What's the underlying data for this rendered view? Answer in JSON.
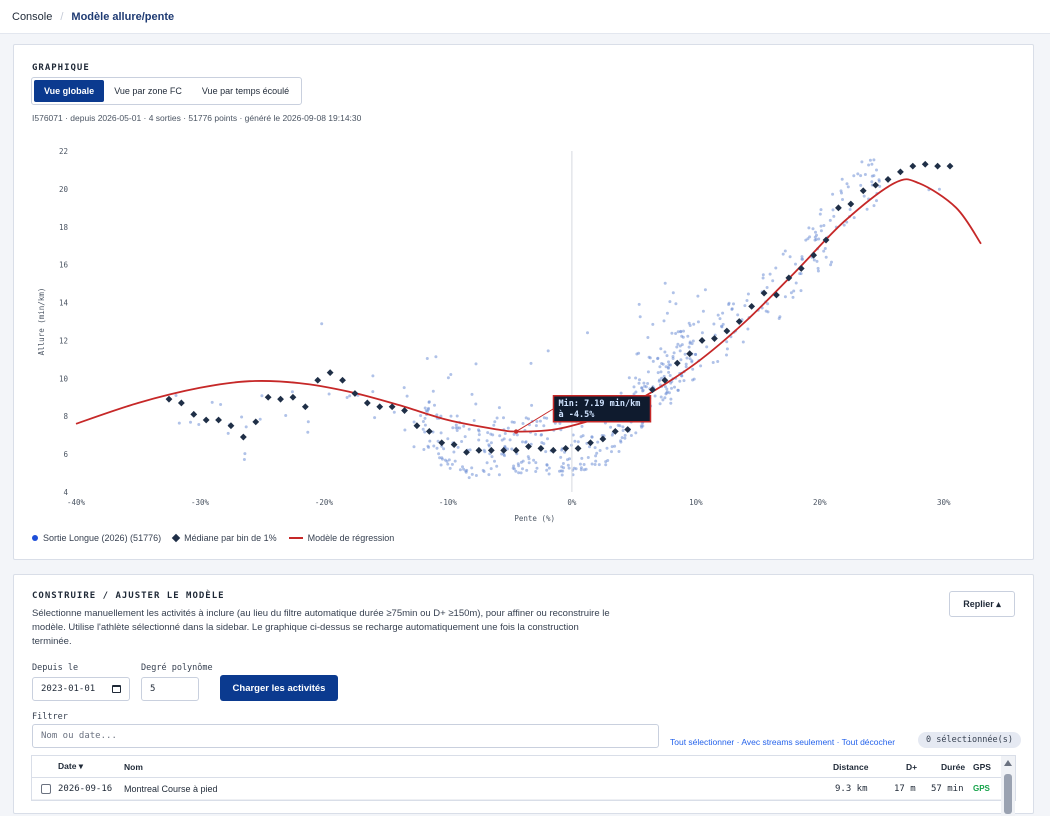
{
  "breadcrumb": {
    "root": "Console",
    "separator": "/",
    "current": "Modèle allure/pente"
  },
  "chart_section": {
    "title": "GRAPHIQUE",
    "tabs": [
      {
        "label": "Vue globale",
        "active": true
      },
      {
        "label": "Vue par zone FC",
        "active": false
      },
      {
        "label": "Vue par temps écoulé",
        "active": false
      }
    ],
    "meta": "I576071 · depuis 2026-05-01 · 4 sorties · 51776 points · généré le 2026-09-08 19:14:30",
    "tooltip": {
      "line1": "Min: 7.19 min/km",
      "line2": "à -4.5%"
    },
    "legend": {
      "points": "Sortie Longue (2026) (51776)",
      "median": "Médiane par bin de 1%",
      "model": "Modèle de régression"
    }
  },
  "chart_data": {
    "type": "scatter",
    "xlabel": "Pente (%)",
    "ylabel": "Allure (min/km)",
    "xlim": [
      -40,
      33
    ],
    "ylim": [
      4,
      22
    ],
    "x_ticks": [
      "-40%",
      "-30%",
      "-20%",
      "-10%",
      "0%",
      "10%",
      "20%",
      "30%"
    ],
    "x_tick_values": [
      -40,
      -30,
      -20,
      -10,
      0,
      10,
      20,
      30
    ],
    "y_ticks": [
      4,
      6,
      8,
      10,
      12,
      14,
      16,
      18,
      20,
      22
    ],
    "grid": false,
    "legend_position": "bottom-left",
    "colors": {
      "points": "#6f8fd6",
      "median": "#1f2f47",
      "model": "#c62828"
    },
    "model_curve": {
      "x": [
        -40,
        -35,
        -30,
        -26,
        -22,
        -18,
        -14,
        -10,
        -6,
        -4.5,
        -2,
        0,
        3,
        6,
        10,
        14,
        18,
        22,
        26,
        28,
        31,
        33
      ],
      "y": [
        7.6,
        8.7,
        9.5,
        9.85,
        9.75,
        9.3,
        8.6,
        7.8,
        7.3,
        7.19,
        7.25,
        7.5,
        8.1,
        9.1,
        10.8,
        13.0,
        15.6,
        18.3,
        20.3,
        20.3,
        19.0,
        17.1
      ]
    },
    "medians": {
      "x": [
        -32.5,
        -31.5,
        -30.5,
        -29.5,
        -28.5,
        -27.5,
        -26.5,
        -25.5,
        -24.5,
        -23.5,
        -22.5,
        -21.5,
        -20.5,
        -19.5,
        -18.5,
        -17.5,
        -16.5,
        -15.5,
        -14.5,
        -13.5,
        -12.5,
        -11.5,
        -10.5,
        -9.5,
        -8.5,
        -7.5,
        -6.5,
        -5.5,
        -4.5,
        -3.5,
        -2.5,
        -1.5,
        -0.5,
        0.5,
        1.5,
        2.5,
        3.5,
        4.5,
        5.5,
        6.5,
        7.5,
        8.5,
        9.5,
        10.5,
        11.5,
        12.5,
        13.5,
        14.5,
        15.5,
        16.5,
        17.5,
        18.5,
        19.5,
        20.5,
        21.5,
        22.5,
        23.5,
        24.5,
        25.5,
        26.5,
        27.5,
        28.5,
        29.5,
        30.5
      ],
      "y": [
        8.9,
        8.7,
        8.1,
        7.8,
        7.8,
        7.5,
        6.9,
        7.7,
        9.0,
        8.9,
        9.0,
        8.5,
        9.9,
        10.3,
        9.9,
        9.2,
        8.7,
        8.5,
        8.5,
        8.3,
        7.5,
        7.2,
        6.6,
        6.5,
        6.1,
        6.2,
        6.2,
        6.2,
        6.2,
        6.4,
        6.3,
        6.2,
        6.3,
        6.3,
        6.6,
        6.8,
        7.2,
        7.3,
        8.5,
        9.4,
        9.9,
        10.8,
        11.3,
        12.0,
        12.1,
        12.5,
        13.0,
        13.8,
        14.5,
        14.4,
        15.3,
        15.8,
        16.5,
        17.3,
        19.0,
        19.2,
        19.9,
        20.2,
        20.5,
        20.9,
        21.2,
        21.3,
        21.2,
        21.2
      ]
    }
  },
  "build_section": {
    "title": "CONSTRUIRE / AJUSTER LE MODÈLE",
    "description": "Sélectionne manuellement les activités à inclure (au lieu du filtre automatique durée ≥75min ou D+ ≥150m), pour affiner ou reconstruire le modèle. Utilise l'athlète sélectionné dans la sidebar. Le graphique ci-dessus se recharge automatiquement une fois la construction terminée.",
    "fold_label": "Replier ▴",
    "since_label": "Depuis le",
    "since_value": "2023-01-01",
    "degree_label": "Degré polynôme",
    "degree_value": "5",
    "load_button": "Charger les activités",
    "filter_label": "Filtrer",
    "filter_placeholder": "Nom ou date...",
    "links": "Tout sélectionner · Avec streams seulement · Tout décocher",
    "selected_badge": "0 sélectionnée(s)",
    "table": {
      "headers": {
        "date": "Date ▾",
        "name": "Nom",
        "distance": "Distance",
        "dplus": "D+",
        "duration": "Durée",
        "gps": "GPS"
      },
      "rows": [
        {
          "date": "2026-09-16",
          "name": "Montreal Course à pied",
          "distance": "9.3 km",
          "dplus": "17 m",
          "duration": "57 min",
          "gps": "GPS"
        }
      ]
    }
  }
}
